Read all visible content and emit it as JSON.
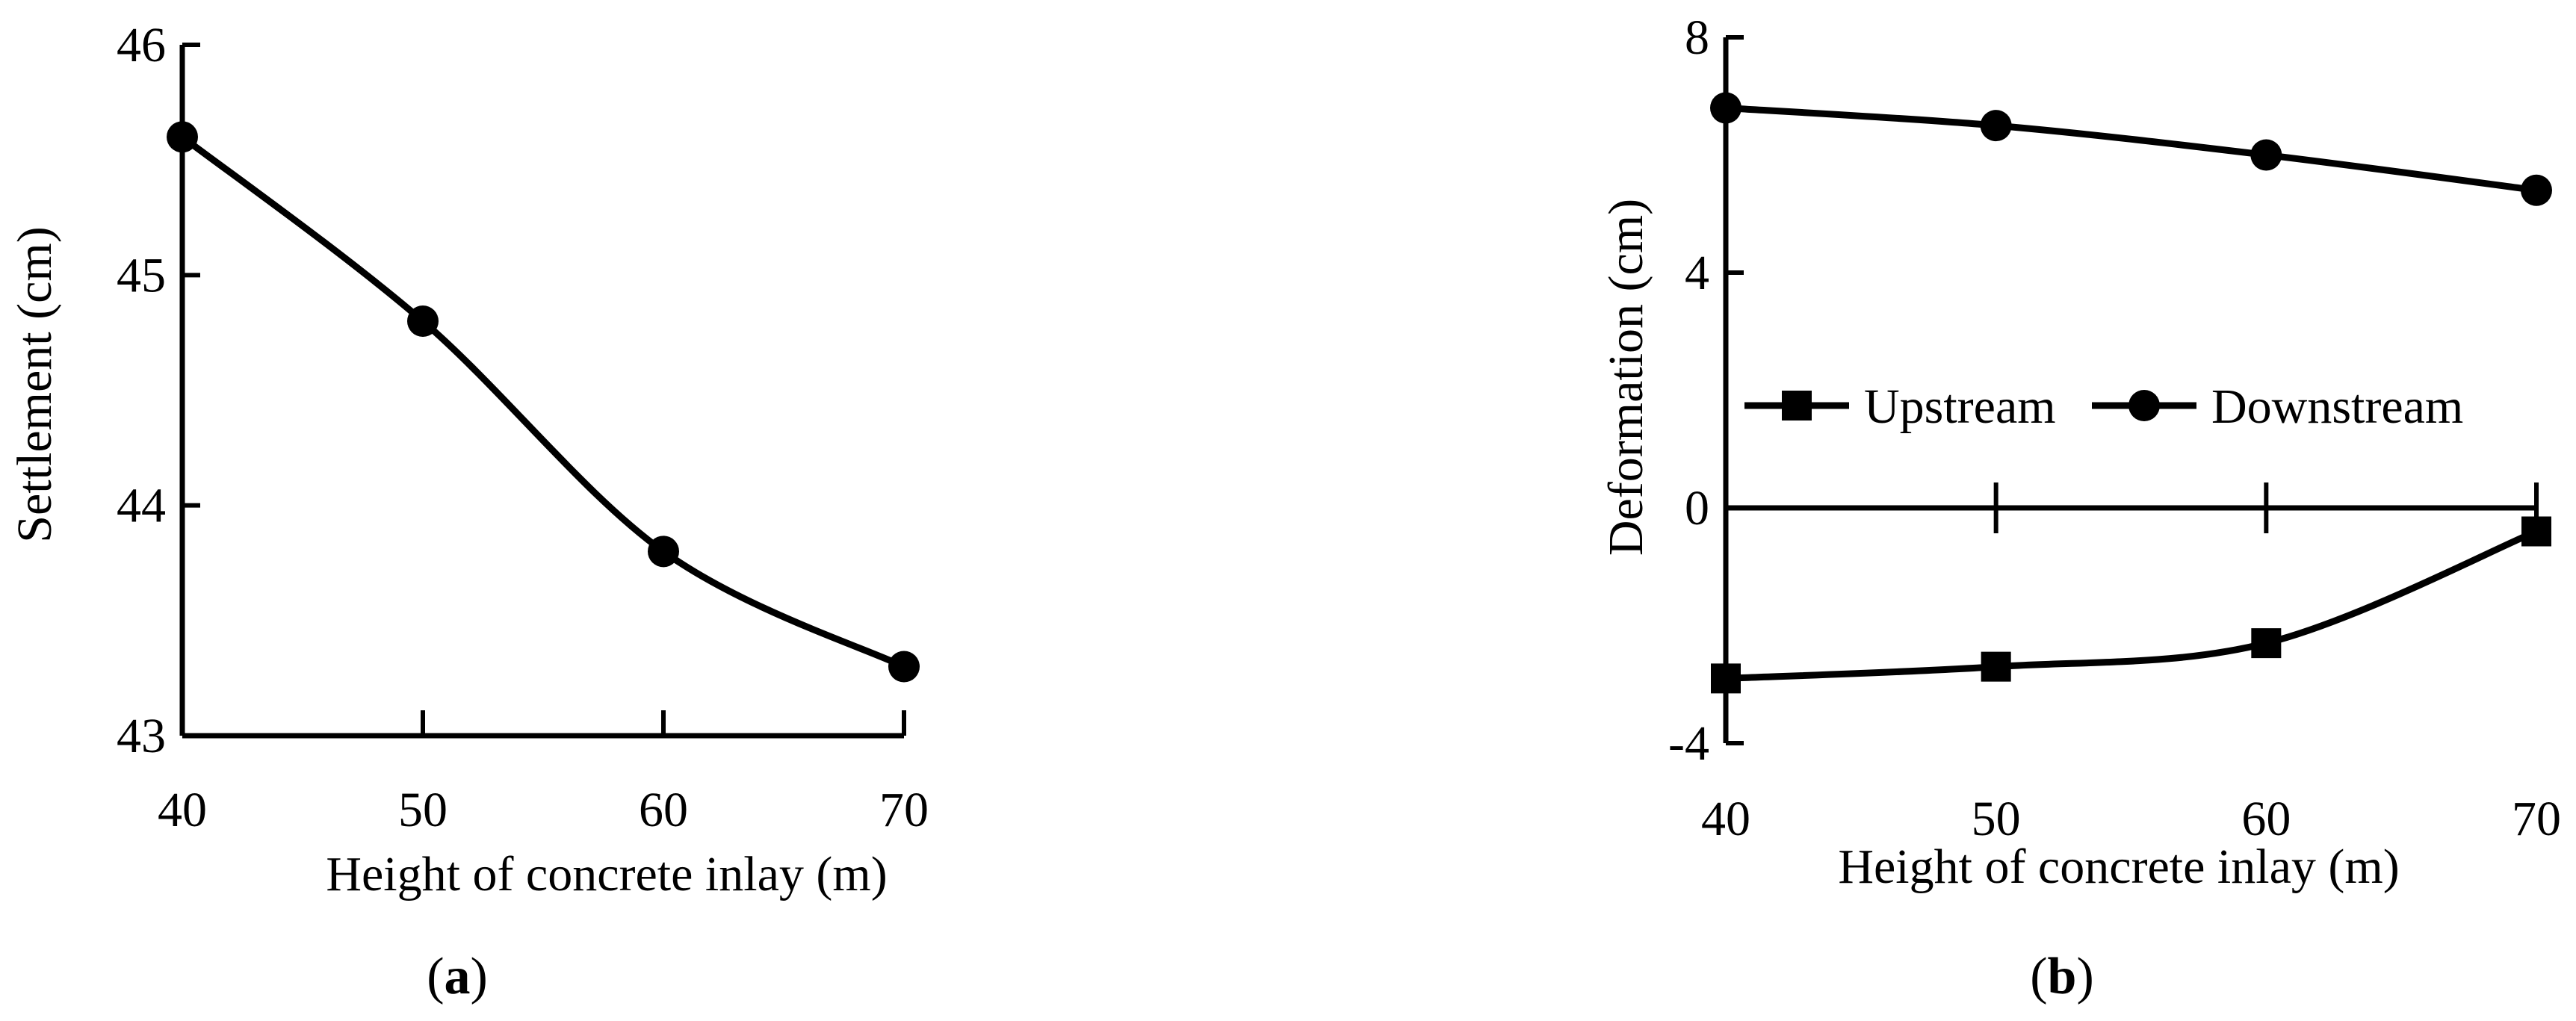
{
  "chart_data": [
    {
      "type": "line",
      "panel_label": "a",
      "title": "",
      "xlabel": "Height of concrete inlay (m)",
      "ylabel": "Settlement (cm)",
      "xlim": [
        40,
        70
      ],
      "ylim": [
        43,
        46
      ],
      "x_ticks": [
        40,
        50,
        60,
        70
      ],
      "y_ticks": [
        43,
        44,
        45,
        46
      ],
      "grid": false,
      "series": [
        {
          "marker": "circle",
          "x": [
            40,
            50,
            60,
            70
          ],
          "values": [
            45.6,
            44.8,
            43.8,
            43.3
          ]
        }
      ]
    },
    {
      "type": "line",
      "panel_label": "b",
      "title": "",
      "xlabel": "Height of concrete inlay (m)",
      "ylabel": "Deformation (cm)",
      "xlim": [
        40,
        70
      ],
      "ylim": [
        -4,
        8
      ],
      "x_ticks": [
        40,
        50,
        60,
        70
      ],
      "y_ticks": [
        -4,
        0,
        4,
        8
      ],
      "grid": false,
      "legend_position": "center",
      "series": [
        {
          "name": "Upstream",
          "marker": "square",
          "x": [
            40,
            50,
            60,
            70
          ],
          "values": [
            -2.9,
            -2.7,
            -2.3,
            -0.4
          ]
        },
        {
          "name": "Downstream",
          "marker": "circle",
          "x": [
            40,
            50,
            60,
            70
          ],
          "values": [
            6.8,
            6.5,
            6.0,
            5.4
          ]
        }
      ]
    }
  ],
  "colors": {
    "ink": "#000000",
    "background": "#ffffff"
  }
}
